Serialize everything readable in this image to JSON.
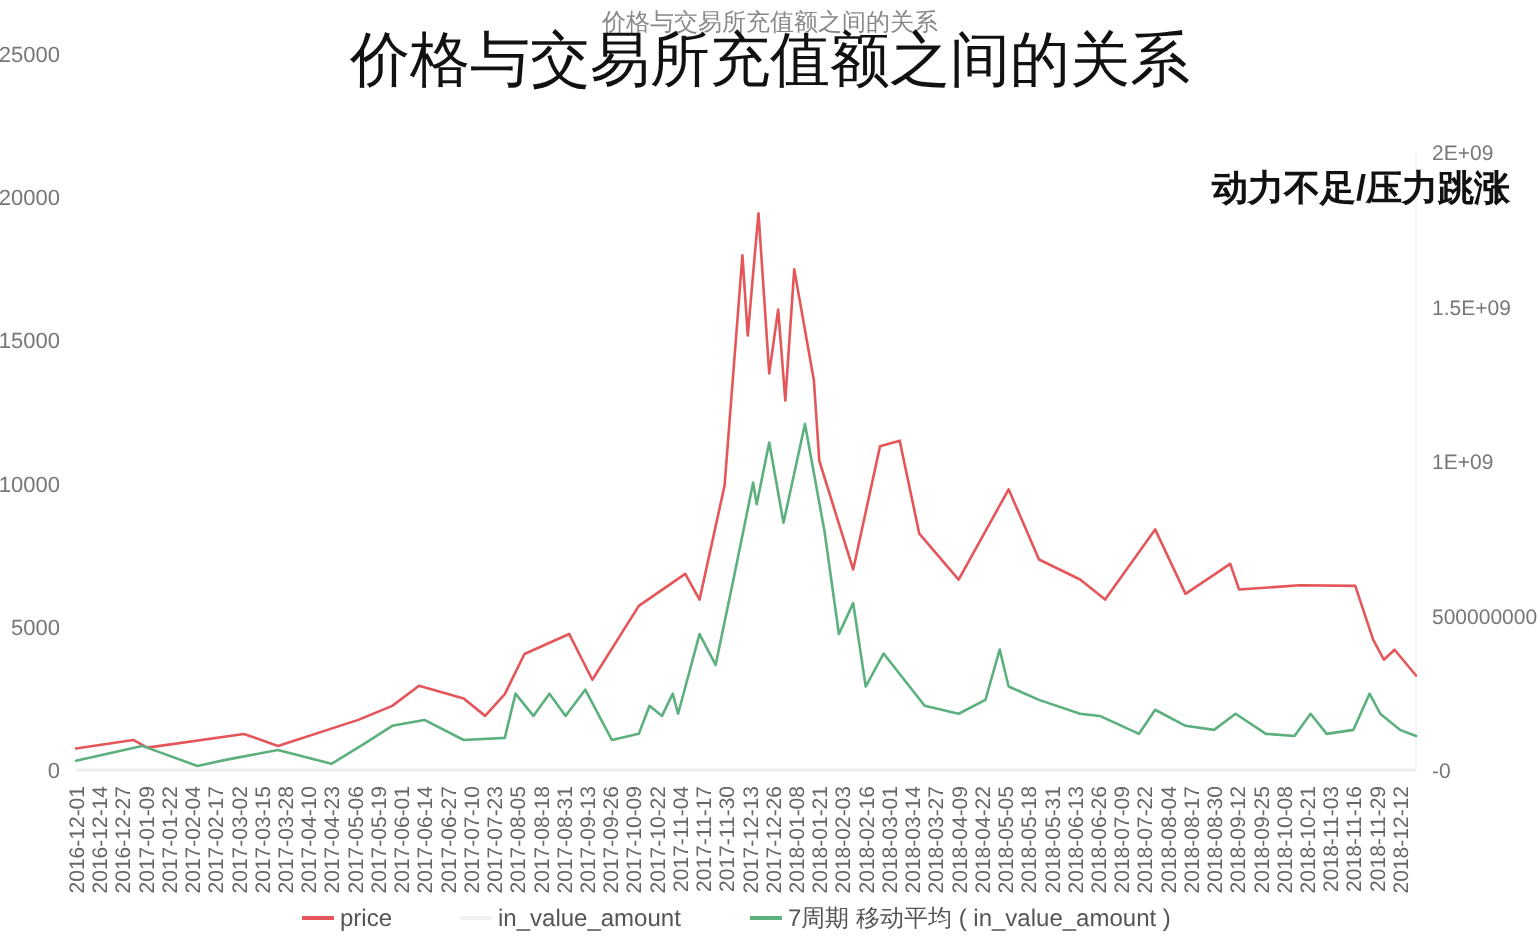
{
  "chart_data": {
    "type": "line",
    "title": "价格与交易所充值额之间的关系",
    "subtitle": "价格与交易所充值额之间的关系",
    "annotations": [
      "动力不足/压力跳涨"
    ],
    "xlim": [
      "2016-12-01",
      "2018-12-21"
    ],
    "xticks": [
      "2016-12-01",
      "2016-12-14",
      "2016-12-27",
      "2017-01-09",
      "2017-01-22",
      "2017-02-04",
      "2017-02-17",
      "2017-03-02",
      "2017-03-15",
      "2017-03-28",
      "2017-04-10",
      "2017-04-23",
      "2017-05-06",
      "2017-05-19",
      "2017-06-01",
      "2017-06-14",
      "2017-06-27",
      "2017-07-10",
      "2017-07-23",
      "2017-08-05",
      "2017-08-18",
      "2017-08-31",
      "2017-09-13",
      "2017-09-26",
      "2017-10-09",
      "2017-10-22",
      "2017-11-04",
      "2017-11-17",
      "2017-11-30",
      "2017-12-13",
      "2017-12-26",
      "2018-01-08",
      "2018-01-21",
      "2018-02-03",
      "2018-02-16",
      "2018-03-01",
      "2018-03-14",
      "2018-03-27",
      "2018-04-09",
      "2018-04-22",
      "2018-05-05",
      "2018-05-18",
      "2018-05-31",
      "2018-06-13",
      "2018-06-26",
      "2018-07-09",
      "2018-07-22",
      "2018-08-04",
      "2018-08-17",
      "2018-08-30",
      "2018-09-12",
      "2018-09-25",
      "2018-10-08",
      "2018-10-21",
      "2018-11-03",
      "2018-11-16",
      "2018-11-29",
      "2018-12-12"
    ],
    "ylim": [
      0,
      25000
    ],
    "yticks": [
      0,
      5000,
      10000,
      15000,
      20000,
      25000
    ],
    "y2lim": [
      0,
      2000000000
    ],
    "y2ticks": [
      {
        "value": 0,
        "label": "-0"
      },
      500000000,
      {
        "value": 1000000000,
        "label": "1E+09"
      },
      {
        "value": 1500000000,
        "label": "1.5E+09"
      },
      {
        "value": 2000000000,
        "label": "2E+09"
      }
    ],
    "grid": false,
    "legend": "bottom",
    "marker": "none",
    "line_style": "solid",
    "series": [
      {
        "name": "price",
        "color": "#e45659",
        "x": [
          "2016-12-01",
          "2017-01-02",
          "2017-01-10",
          "2017-03-05",
          "2017-03-24",
          "2017-05-08",
          "2017-05-27",
          "2017-06-11",
          "2017-07-06",
          "2017-07-18",
          "2017-07-29",
          "2017-08-09",
          "2017-09-03",
          "2017-09-16",
          "2017-10-12",
          "2017-11-07",
          "2017-11-15",
          "2017-11-29",
          "2017-12-09",
          "2017-12-12",
          "2017-12-15",
          "2017-12-18",
          "2017-12-24",
          "2017-12-29",
          "2018-01-02",
          "2018-01-07",
          "2018-01-18",
          "2018-01-21",
          "2018-02-09",
          "2018-02-24",
          "2018-03-07",
          "2018-03-18",
          "2018-04-09",
          "2018-05-07",
          "2018-05-24",
          "2018-06-16",
          "2018-06-30",
          "2018-07-28",
          "2018-08-14",
          "2018-09-08",
          "2018-09-13",
          "2018-10-17",
          "2018-11-17",
          "2018-11-27",
          "2018-12-03",
          "2018-12-09",
          "2018-12-21"
        ],
        "values": [
          750,
          1050,
          780,
          1260,
          840,
          1750,
          2240,
          2940,
          2500,
          1890,
          2650,
          4050,
          4750,
          3150,
          5730,
          6850,
          5950,
          9930,
          17970,
          15170,
          17340,
          19440,
          13850,
          16080,
          12900,
          17480,
          13600,
          10800,
          7000,
          11300,
          11500,
          8250,
          6650,
          9800,
          7350,
          6650,
          5950,
          8400,
          6150,
          7200,
          6300,
          6450,
          6430,
          4550,
          3850,
          4200,
          3300
        ]
      },
      {
        "name": "in_value_amount",
        "color": "#f2f2f2",
        "axis": "y2"
      },
      {
        "name": "7周期 移动平均 ( in_value_amount   )",
        "color": "#5bb07e",
        "axis": "y2",
        "x": [
          "2016-12-01",
          "2017-01-07",
          "2017-02-07",
          "2017-02-22",
          "2017-03-24",
          "2017-04-23",
          "2017-05-11",
          "2017-05-27",
          "2017-06-14",
          "2017-07-06",
          "2017-07-29",
          "2017-08-04",
          "2017-08-14",
          "2017-08-23",
          "2017-09-01",
          "2017-09-12",
          "2017-09-27",
          "2017-10-12",
          "2017-10-18",
          "2017-10-25",
          "2017-10-31",
          "2017-11-03",
          "2017-11-15",
          "2017-11-24",
          "2017-12-04",
          "2017-12-15",
          "2017-12-17",
          "2017-12-24",
          "2018-01-01",
          "2018-01-13",
          "2018-01-24",
          "2018-02-01",
          "2018-02-09",
          "2018-02-16",
          "2018-02-26",
          "2018-03-21",
          "2018-04-09",
          "2018-04-24",
          "2018-05-02",
          "2018-05-07",
          "2018-05-24",
          "2018-06-16",
          "2018-06-27",
          "2018-07-19",
          "2018-07-28",
          "2018-08-14",
          "2018-08-30",
          "2018-09-11",
          "2018-09-28",
          "2018-10-14",
          "2018-10-23",
          "2018-11-01",
          "2018-11-16",
          "2018-11-25",
          "2018-12-01",
          "2018-12-12",
          "2018-12-21"
        ],
        "values": [
          30000000,
          78000000,
          13000000,
          32000000,
          65000000,
          20000000,
          84000000,
          143000000,
          162000000,
          97000000,
          104000000,
          247000000,
          175000000,
          247000000,
          175000000,
          260000000,
          97000000,
          117000000,
          208000000,
          175000000,
          247000000,
          182000000,
          440000000,
          340000000,
          617000000,
          930000000,
          860000000,
          1060000000,
          800000000,
          1120000000,
          770000000,
          440000000,
          540000000,
          270000000,
          377000000,
          208000000,
          182000000,
          227000000,
          390000000,
          270000000,
          227000000,
          182000000,
          175000000,
          117000000,
          195000000,
          143000000,
          130000000,
          182000000,
          117000000,
          110000000,
          182000000,
          117000000,
          130000000,
          247000000,
          182000000,
          130000000,
          110000000
        ]
      }
    ]
  }
}
